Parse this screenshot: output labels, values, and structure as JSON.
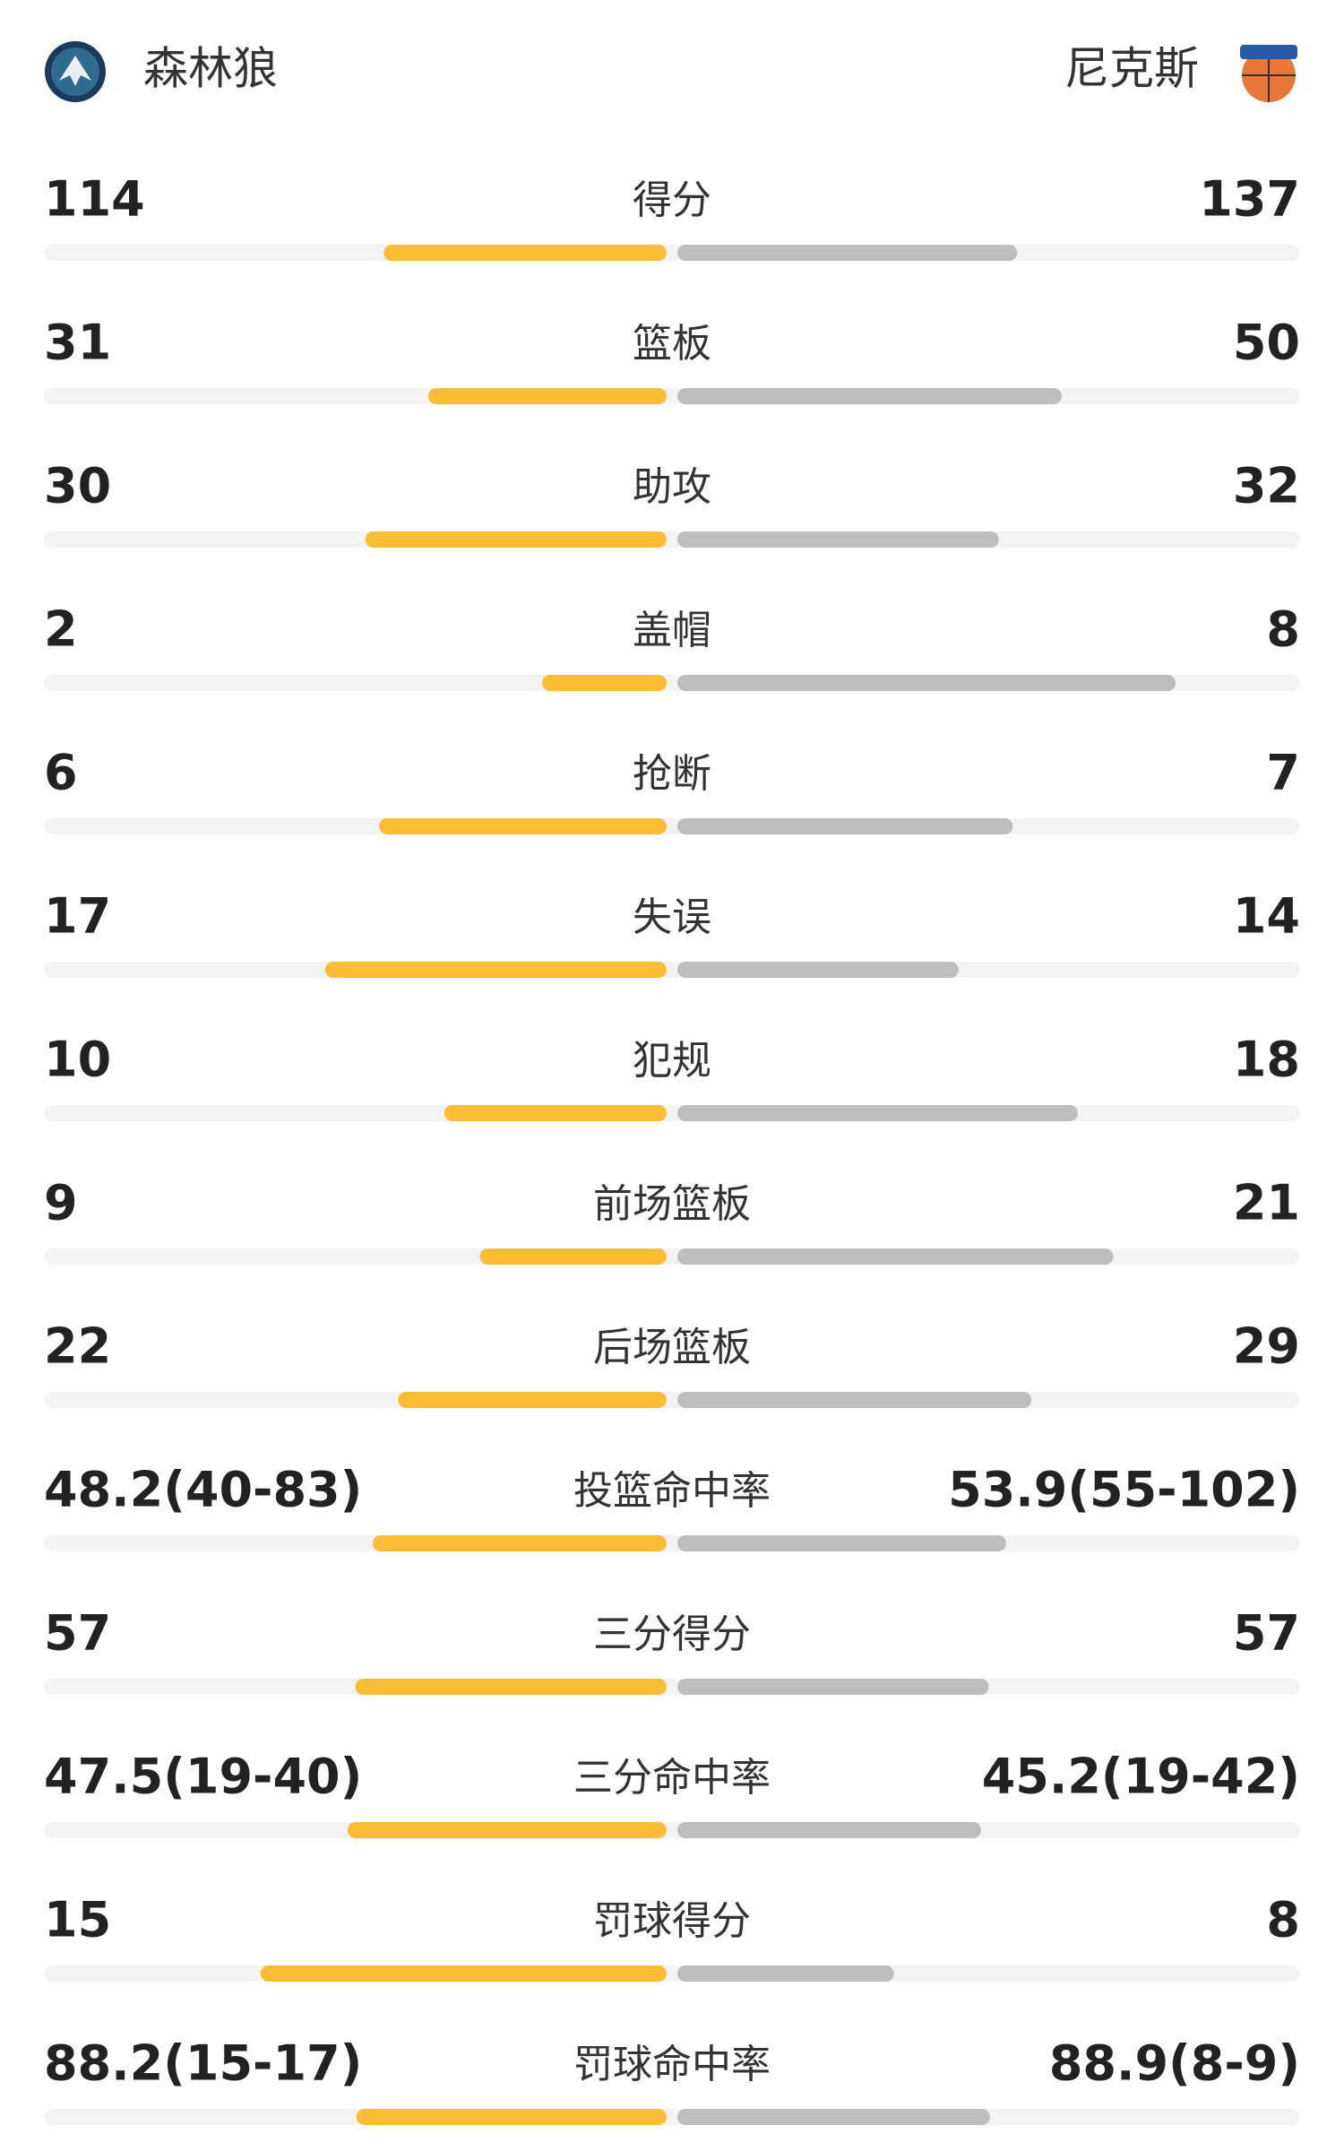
{
  "header": {
    "home": "森林狼",
    "away": "尼克斯"
  },
  "rows": [
    {
      "label": "得分",
      "left": 114,
      "right": 137
    },
    {
      "label": "篮板",
      "left": 31,
      "right": 50
    },
    {
      "label": "助攻",
      "left": 30,
      "right": 32
    },
    {
      "label": "盖帽",
      "left": 2,
      "right": 8
    },
    {
      "label": "抢断",
      "left": 6,
      "right": 7
    },
    {
      "label": "失误",
      "left": 17,
      "right": 14
    },
    {
      "label": "犯规",
      "left": 10,
      "right": 18
    },
    {
      "label": "前场篮板",
      "left": 9,
      "right": 21
    },
    {
      "label": "后场篮板",
      "left": 22,
      "right": 29
    },
    {
      "label": "投篮命中率",
      "left": {
        "value": 48.2,
        "label": "48.2(40-83)"
      },
      "right": {
        "value": 53.9,
        "label": "53.9(55-102)"
      }
    },
    {
      "label": "三分得分",
      "left": 57,
      "right": 57
    },
    {
      "label": "三分命中率",
      "left": {
        "value": 47.5,
        "label": "47.5(19-40)"
      },
      "right": {
        "value": 45.2,
        "label": "45.2(19-42)"
      }
    },
    {
      "label": "罚球得分",
      "left": 15,
      "right": 8
    },
    {
      "label": "罚球命中率",
      "left": {
        "value": 88.2,
        "label": "88.2(15-17)"
      },
      "right": {
        "value": 88.9,
        "label": "88.9(8-9)"
      }
    }
  ]
}
